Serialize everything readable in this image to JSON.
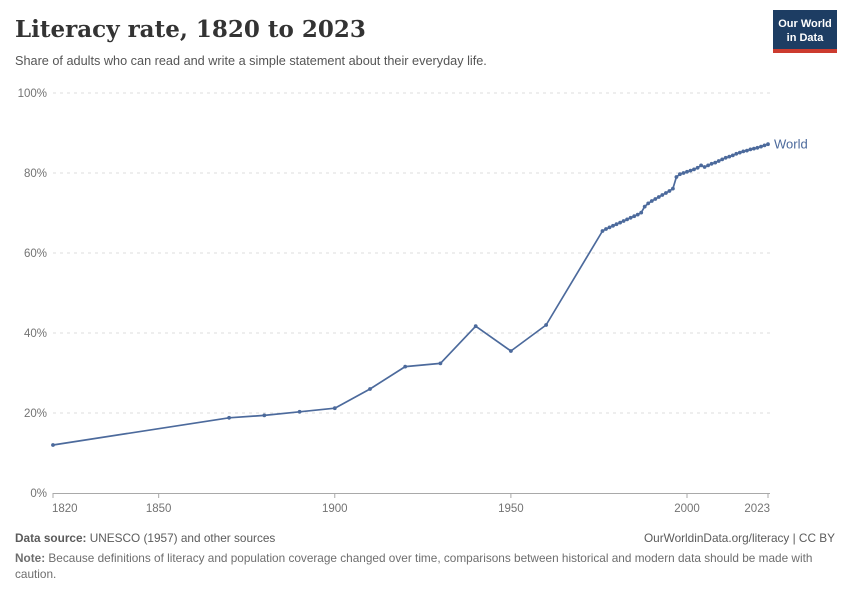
{
  "header": {
    "title": "Literacy rate, 1820 to 2023",
    "subtitle": "Share of adults who can read and write a simple statement about their everyday life.",
    "logo_line1": "Our World",
    "logo_line2": "in Data"
  },
  "chart_data": {
    "type": "line",
    "title": "Literacy rate, 1820 to 2023",
    "xlabel": "",
    "ylabel": "",
    "xlim": [
      1820,
      2023
    ],
    "ylim": [
      0,
      100
    ],
    "grid": "horizontal-dashed",
    "x_ticks": [
      1820,
      1850,
      1900,
      1950,
      2000,
      2023
    ],
    "y_ticks": [
      0,
      20,
      40,
      60,
      80,
      100
    ],
    "y_tick_suffix": "%",
    "legend_position": "end-of-line",
    "series": [
      {
        "name": "World",
        "color": "#4c6a9c",
        "points": [
          [
            1820,
            12.0
          ],
          [
            1870,
            18.8
          ],
          [
            1880,
            19.4
          ],
          [
            1890,
            20.3
          ],
          [
            1900,
            21.2
          ],
          [
            1910,
            26.0
          ],
          [
            1920,
            31.6
          ],
          [
            1930,
            32.4
          ],
          [
            1940,
            41.7
          ],
          [
            1950,
            35.5
          ],
          [
            1960,
            42.0
          ],
          [
            1976,
            65.5
          ],
          [
            1977,
            66.0
          ],
          [
            1978,
            66.4
          ],
          [
            1979,
            66.8
          ],
          [
            1980,
            67.2
          ],
          [
            1981,
            67.6
          ],
          [
            1982,
            68.0
          ],
          [
            1983,
            68.4
          ],
          [
            1984,
            68.8
          ],
          [
            1985,
            69.2
          ],
          [
            1986,
            69.6
          ],
          [
            1987,
            70.1
          ],
          [
            1988,
            71.6
          ],
          [
            1989,
            72.4
          ],
          [
            1990,
            73.0
          ],
          [
            1991,
            73.5
          ],
          [
            1992,
            74.0
          ],
          [
            1993,
            74.5
          ],
          [
            1994,
            75.0
          ],
          [
            1995,
            75.5
          ],
          [
            1996,
            76.1
          ],
          [
            1997,
            79.0
          ],
          [
            1998,
            79.7
          ],
          [
            1999,
            80.0
          ],
          [
            2000,
            80.3
          ],
          [
            2001,
            80.6
          ],
          [
            2002,
            80.9
          ],
          [
            2003,
            81.3
          ],
          [
            2004,
            81.9
          ],
          [
            2005,
            81.5
          ],
          [
            2006,
            81.9
          ],
          [
            2007,
            82.3
          ],
          [
            2008,
            82.6
          ],
          [
            2009,
            83.0
          ],
          [
            2010,
            83.4
          ],
          [
            2011,
            83.8
          ],
          [
            2012,
            84.1
          ],
          [
            2013,
            84.4
          ],
          [
            2014,
            84.8
          ],
          [
            2015,
            85.1
          ],
          [
            2016,
            85.4
          ],
          [
            2017,
            85.6
          ],
          [
            2018,
            85.9
          ],
          [
            2019,
            86.1
          ],
          [
            2020,
            86.3
          ],
          [
            2021,
            86.6
          ],
          [
            2022,
            86.9
          ],
          [
            2023,
            87.2
          ]
        ]
      }
    ]
  },
  "footer": {
    "datasource_label": "Data source:",
    "datasource_text": " UNESCO (1957) and other sources",
    "link_text": "OurWorldinData.org/literacy | CC BY",
    "note_label": "Note:",
    "note_text": " Because definitions of literacy and population coverage changed over time, comparisons between historical and modern data should be made with caution."
  },
  "colors": {
    "accent_blue": "#4c6a9c",
    "logo_bg": "#1d3d63",
    "logo_red": "#cc3b2f",
    "gridline": "#dcdcdc",
    "axis": "#a9a9a9",
    "tick_text": "#737373"
  }
}
